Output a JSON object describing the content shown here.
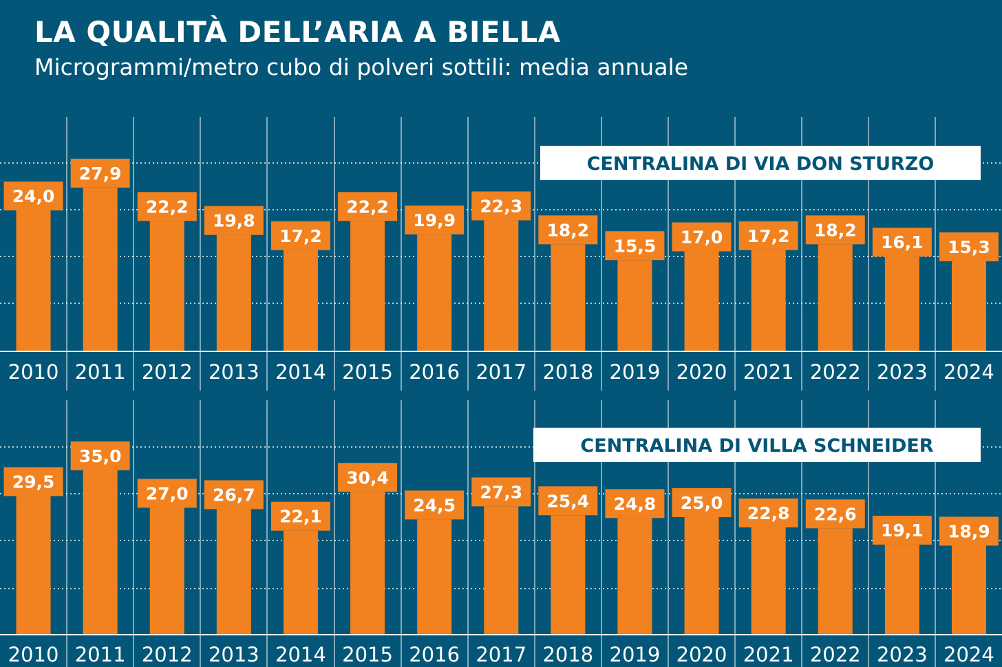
{
  "header": {
    "title": "LA QUALITÀ DELL’ARIA A BIELLA",
    "subtitle": "Microgrammi/metro cubo di polveri sottili: media annuale"
  },
  "colors": {
    "background": "#035677",
    "bar": "#F28120",
    "text": "#FFFFFF",
    "grid": "#FFFFFF"
  },
  "chart_data": [
    {
      "type": "bar",
      "title": "CENTRALINA DI VIA DON STURZO",
      "categories": [
        "2010",
        "2011",
        "2012",
        "2013",
        "2014",
        "2015",
        "2016",
        "2017",
        "2018",
        "2019",
        "2020",
        "2021",
        "2022",
        "2023",
        "2024"
      ],
      "values": [
        24.0,
        27.9,
        22.2,
        19.8,
        17.2,
        22.2,
        19.9,
        22.3,
        18.2,
        15.5,
        17.0,
        17.2,
        18.2,
        16.1,
        15.3
      ],
      "value_labels": [
        "24,0",
        "27,9",
        "22,2",
        "19,8",
        "17,2",
        "22,2",
        "19,9",
        "22,3",
        "18,2",
        "15,5",
        "17,0",
        "17,2",
        "18,2",
        "16,1",
        "15,3"
      ],
      "xlabel": "",
      "ylabel": "",
      "ylim": [
        0,
        40
      ],
      "grid": "horizontal dotted"
    },
    {
      "type": "bar",
      "title": "CENTRALINA DI VILLA SCHNEIDER",
      "categories": [
        "2010",
        "2011",
        "2012",
        "2013",
        "2014",
        "2015",
        "2016",
        "2017",
        "2018",
        "2019",
        "2020",
        "2021",
        "2022",
        "2023",
        "2024"
      ],
      "values": [
        29.5,
        35.0,
        27.0,
        26.7,
        22.1,
        30.4,
        24.5,
        27.3,
        25.4,
        24.8,
        25.0,
        22.8,
        22.6,
        19.1,
        18.9
      ],
      "value_labels": [
        "29,5",
        "35,0",
        "27,0",
        "26,7",
        "22,1",
        "30,4",
        "24,5",
        "27,3",
        "25,4",
        "24,8",
        "25,0",
        "22,8",
        "22,6",
        "19,1",
        "18,9"
      ],
      "xlabel": "",
      "ylabel": "",
      "ylim": [
        0,
        50
      ],
      "grid": "horizontal dotted"
    }
  ]
}
